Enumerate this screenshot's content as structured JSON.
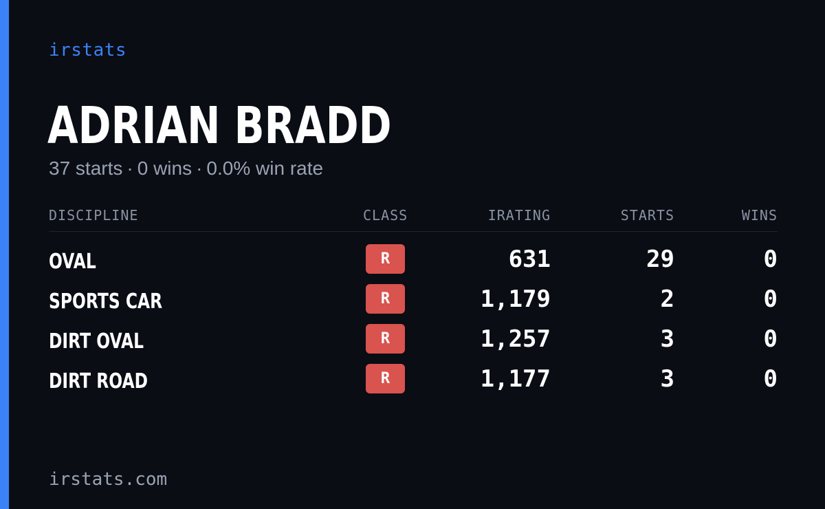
{
  "brand": "irstats",
  "player": {
    "name": "ADRIAN BRADD",
    "summary": {
      "starts": "37 starts",
      "wins": "0 wins",
      "win_rate": "0.0% win rate",
      "separator": "·"
    }
  },
  "table": {
    "headers": {
      "discipline": "DISCIPLINE",
      "class": "CLASS",
      "irating": "IRATING",
      "starts": "STARTS",
      "wins": "WINS"
    },
    "rows": [
      {
        "discipline": "OVAL",
        "class": "R",
        "irating": "631",
        "starts": "29",
        "wins": "0"
      },
      {
        "discipline": "SPORTS CAR",
        "class": "R",
        "irating": "1,179",
        "starts": "2",
        "wins": "0"
      },
      {
        "discipline": "DIRT OVAL",
        "class": "R",
        "irating": "1,257",
        "starts": "3",
        "wins": "0"
      },
      {
        "discipline": "DIRT ROAD",
        "class": "R",
        "irating": "1,177",
        "starts": "3",
        "wins": "0"
      }
    ]
  },
  "footer": {
    "domain": "irstats.com"
  },
  "colors": {
    "background": "#0a0d14",
    "accent": "#3b82f6",
    "class_r": "#d9534f",
    "muted_text": "#9aa3b2"
  }
}
